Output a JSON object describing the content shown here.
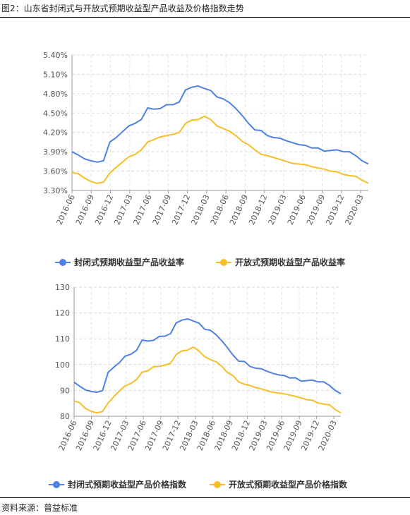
{
  "figure_title": "图2：山东省封闭式与开放式预期收益型产品收益及价格指数走势",
  "source": "资料来源：普益标准",
  "chart_data": [
    {
      "type": "line",
      "title": "",
      "xlabel": "",
      "ylabel": "",
      "ylim": [
        3.3,
        5.4
      ],
      "y_ticks": [
        "3.30%",
        "3.60%",
        "3.90%",
        "4.20%",
        "4.50%",
        "4.80%",
        "5.10%",
        "5.40%"
      ],
      "x_tick_labels": [
        "2016-06",
        "2016-09",
        "2016-12",
        "2017-03",
        "2017-06",
        "2017-09",
        "2017-12",
        "2018-03",
        "2018-06",
        "2018-09",
        "2018-12",
        "2019-03",
        "2019-06",
        "2019-09",
        "2019-12",
        "2020-03"
      ],
      "grid": true,
      "legend_position": "bottom",
      "series": [
        {
          "name": "封闭式预期收益型产品收益率",
          "color": "#4f80e6",
          "values": [
            3.9,
            3.85,
            3.79,
            3.76,
            3.74,
            3.76,
            4.05,
            4.12,
            4.21,
            4.3,
            4.34,
            4.4,
            4.58,
            4.56,
            4.57,
            4.63,
            4.63,
            4.67,
            4.86,
            4.9,
            4.92,
            4.88,
            4.85,
            4.75,
            4.72,
            4.66,
            4.57,
            4.46,
            4.34,
            4.24,
            4.23,
            4.15,
            4.12,
            4.11,
            4.07,
            4.04,
            4.01,
            4.0,
            3.96,
            3.96,
            3.91,
            3.92,
            3.93,
            3.9,
            3.9,
            3.84,
            3.76,
            3.71
          ]
        },
        {
          "name": "开放式预期收益型产品收益率",
          "color": "#f6be27",
          "values": [
            3.58,
            3.56,
            3.49,
            3.44,
            3.41,
            3.43,
            3.57,
            3.66,
            3.74,
            3.82,
            3.86,
            3.93,
            4.05,
            4.09,
            4.13,
            4.15,
            4.17,
            4.2,
            4.34,
            4.39,
            4.4,
            4.45,
            4.4,
            4.3,
            4.26,
            4.22,
            4.15,
            4.06,
            4.01,
            3.93,
            3.86,
            3.84,
            3.81,
            3.78,
            3.75,
            3.72,
            3.71,
            3.7,
            3.67,
            3.65,
            3.63,
            3.6,
            3.59,
            3.55,
            3.53,
            3.52,
            3.46,
            3.41
          ]
        }
      ]
    },
    {
      "type": "line",
      "title": "",
      "xlabel": "",
      "ylabel": "",
      "ylim": [
        80,
        130
      ],
      "y_ticks": [
        "80",
        "90",
        "100",
        "110",
        "120",
        "130"
      ],
      "x_tick_labels": [
        "2016-06",
        "2016-09",
        "2016-12",
        "2017-03",
        "2017-06",
        "2017-09",
        "2017-12",
        "2018-03",
        "2018-06",
        "2018-09",
        "2018-12",
        "2019-03",
        "2019-06",
        "2019-09",
        "2019-12",
        "2020-03"
      ],
      "grid": true,
      "legend_position": "bottom",
      "series": [
        {
          "name": "封闭式预期收益型产品价格指数",
          "color": "#4f80e6",
          "values": [
            93.2,
            91.6,
            90.2,
            89.6,
            89.3,
            89.9,
            97.0,
            99.0,
            100.8,
            103.3,
            104.0,
            105.5,
            109.5,
            109.1,
            109.4,
            110.9,
            111.0,
            112.0,
            116.2,
            117.2,
            117.7,
            116.9,
            116.1,
            113.7,
            113.3,
            111.6,
            109.3,
            106.6,
            103.7,
            101.3,
            101.2,
            99.3,
            98.6,
            98.4,
            97.4,
            96.6,
            96.0,
            95.8,
            94.8,
            94.9,
            93.6,
            93.8,
            94.0,
            93.3,
            93.3,
            91.9,
            90.0,
            88.7
          ]
        },
        {
          "name": "开放式预期收益型产品价格指数",
          "color": "#f6be27",
          "values": [
            86.0,
            85.2,
            83.0,
            81.9,
            81.3,
            81.8,
            85.2,
            87.6,
            89.8,
            91.8,
            92.7,
            94.2,
            97.1,
            97.6,
            99.2,
            99.3,
            99.8,
            100.5,
            103.9,
            105.3,
            105.6,
            106.8,
            105.3,
            103.1,
            101.9,
            101.1,
            99.4,
            97.0,
            95.7,
            93.3,
            92.4,
            91.9,
            91.1,
            90.6,
            89.9,
            89.3,
            89.0,
            88.7,
            88.2,
            87.7,
            87.1,
            86.4,
            86.2,
            85.1,
            84.7,
            84.4,
            82.6,
            81.3
          ]
        }
      ]
    }
  ]
}
